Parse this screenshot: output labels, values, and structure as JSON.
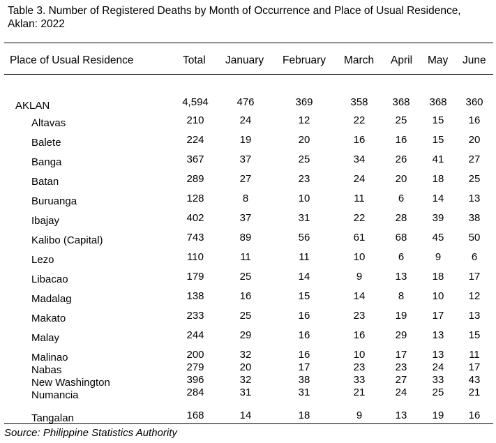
{
  "title": "Table 3. Number of Registered Deaths by Month of Occurrence and Place of Usual Residence, Aklan: 2022",
  "columns": [
    "Place of Usual Residence",
    "Total",
    "January",
    "February",
    "March",
    "April",
    "May",
    "June"
  ],
  "rows": [
    {
      "name": "AKLAN",
      "values": [
        "4,594",
        "476",
        "369",
        "358",
        "368",
        "368",
        "360"
      ]
    },
    {
      "name": "Altavas",
      "values": [
        "210",
        "24",
        "12",
        "22",
        "25",
        "15",
        "16"
      ]
    },
    {
      "name": "Balete",
      "values": [
        "224",
        "19",
        "20",
        "16",
        "16",
        "15",
        "20"
      ]
    },
    {
      "name": "Banga",
      "values": [
        "367",
        "37",
        "25",
        "34",
        "26",
        "41",
        "27"
      ]
    },
    {
      "name": "Batan",
      "values": [
        "289",
        "27",
        "23",
        "24",
        "20",
        "18",
        "25"
      ]
    },
    {
      "name": "Buruanga",
      "values": [
        "128",
        "8",
        "10",
        "11",
        "6",
        "14",
        "13"
      ]
    },
    {
      "name": "Ibajay",
      "values": [
        "402",
        "37",
        "31",
        "22",
        "28",
        "39",
        "38"
      ]
    },
    {
      "name": "Kalibo (Capital)",
      "values": [
        "743",
        "89",
        "56",
        "61",
        "68",
        "45",
        "50"
      ]
    },
    {
      "name": "Lezo",
      "values": [
        "110",
        "11",
        "11",
        "10",
        "6",
        "9",
        "6"
      ]
    },
    {
      "name": "Libacao",
      "values": [
        "179",
        "25",
        "14",
        "9",
        "13",
        "18",
        "17"
      ]
    },
    {
      "name": "Madalag",
      "values": [
        "138",
        "16",
        "15",
        "14",
        "8",
        "10",
        "12"
      ]
    },
    {
      "name": "Makato",
      "values": [
        "233",
        "25",
        "16",
        "23",
        "19",
        "17",
        "13"
      ]
    },
    {
      "name": "Malay",
      "values": [
        "244",
        "29",
        "16",
        "16",
        "29",
        "13",
        "15"
      ]
    },
    {
      "name": "Malinao",
      "values": [
        "200",
        "32",
        "16",
        "10",
        "17",
        "13",
        "11"
      ]
    },
    {
      "name": "Nabas",
      "values": [
        "279",
        "20",
        "17",
        "23",
        "23",
        "24",
        "17"
      ]
    },
    {
      "name": "New Washington",
      "values": [
        "396",
        "32",
        "38",
        "33",
        "27",
        "33",
        "43"
      ]
    },
    {
      "name": "Numancia",
      "values": [
        "284",
        "31",
        "31",
        "21",
        "24",
        "25",
        "21"
      ]
    },
    {
      "name": "Tangalan",
      "values": [
        "168",
        "14",
        "18",
        "9",
        "13",
        "19",
        "16"
      ]
    }
  ],
  "source": "Source: Philippine Statistics Authority"
}
